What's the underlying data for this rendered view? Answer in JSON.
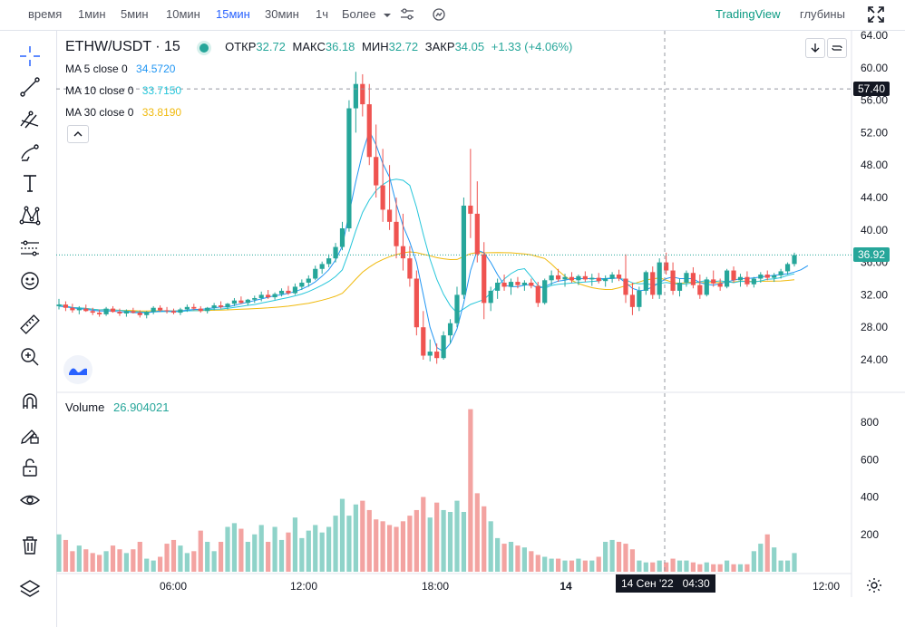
{
  "topbar": {
    "items": [
      {
        "label": "время",
        "active": false
      },
      {
        "label": "1мин",
        "active": false
      },
      {
        "label": "5мин",
        "active": false
      },
      {
        "label": "10мин",
        "active": false
      },
      {
        "label": "15мин",
        "active": true
      },
      {
        "label": "30мин",
        "active": false
      },
      {
        "label": "1ч",
        "active": false
      },
      {
        "label": "Более",
        "active": false
      }
    ],
    "brand": "TradingView",
    "depth": "глубины"
  },
  "legend": {
    "symbol": "ETHW/USDT · 15",
    "open_label": "ОТКР",
    "open": "32.72",
    "high_label": "МАКС",
    "high": "36.18",
    "low_label": "МИН",
    "low": "32.72",
    "close_label": "ЗАКР",
    "close": "34.05",
    "change": "+1.33 (+4.06%)",
    "ma5": {
      "label": "MA 5 close 0",
      "value": "34.5720",
      "color": "#2196f3"
    },
    "ma10": {
      "label": "MA 10 close 0",
      "value": "33.7150",
      "color": "#26c6da"
    },
    "ma30": {
      "label": "MA 30 close 0",
      "value": "33.8190",
      "color": "#f0b90b"
    }
  },
  "volume": {
    "label": "Volume",
    "value": "26.904021"
  },
  "price_axis": {
    "ticks": [
      "64.00",
      "60.00",
      "56.00",
      "52.00",
      "48.00",
      "44.00",
      "40.00",
      "36.00",
      "32.00",
      "28.00",
      "24.00"
    ],
    "crosshair_price": "57.40",
    "last_price": "36.92"
  },
  "volume_axis": {
    "ticks": [
      "800",
      "600",
      "400",
      "200"
    ]
  },
  "time_axis": {
    "ticks": [
      "06:00",
      "12:00",
      "18:00",
      "14",
      "12:00"
    ],
    "crosshair_time": "14 Сен '22   04:30"
  },
  "colors": {
    "up": "#26a69a",
    "down": "#ef5350",
    "up_light": "#8fd3c9",
    "down_light": "#f3a3a1"
  },
  "chart_data": {
    "type": "candlestick",
    "y_unit": "USDT",
    "ohlc": [
      [
        30.6,
        31.5,
        30.2,
        30.8
      ],
      [
        30.8,
        31.2,
        30.0,
        30.4
      ],
      [
        30.4,
        30.9,
        29.8,
        30.1
      ],
      [
        30.1,
        30.6,
        29.6,
        30.3
      ],
      [
        30.3,
        30.8,
        29.9,
        30.0
      ],
      [
        30.0,
        30.4,
        29.5,
        29.8
      ],
      [
        29.8,
        30.2,
        29.3,
        29.6
      ],
      [
        29.6,
        30.5,
        29.4,
        30.3
      ],
      [
        30.3,
        30.6,
        29.8,
        29.9
      ],
      [
        29.9,
        30.3,
        29.4,
        29.7
      ],
      [
        29.7,
        30.2,
        29.3,
        30.0
      ],
      [
        30.0,
        30.4,
        29.7,
        29.8
      ],
      [
        29.8,
        30.1,
        29.2,
        29.5
      ],
      [
        29.5,
        30.0,
        29.1,
        29.9
      ],
      [
        29.9,
        30.6,
        29.6,
        30.4
      ],
      [
        30.4,
        30.7,
        29.9,
        30.1
      ],
      [
        30.1,
        30.5,
        29.7,
        30.0
      ],
      [
        30.0,
        30.3,
        29.6,
        29.8
      ],
      [
        29.8,
        30.4,
        29.5,
        30.2
      ],
      [
        30.2,
        30.8,
        29.9,
        30.5
      ],
      [
        30.5,
        30.9,
        30.1,
        30.3
      ],
      [
        30.3,
        30.6,
        29.8,
        30.0
      ],
      [
        30.0,
        30.5,
        29.7,
        30.4
      ],
      [
        30.4,
        31.0,
        30.1,
        30.7
      ],
      [
        30.7,
        31.2,
        30.3,
        30.5
      ],
      [
        30.5,
        31.0,
        30.2,
        30.9
      ],
      [
        30.9,
        31.6,
        30.6,
        31.3
      ],
      [
        31.3,
        31.8,
        30.9,
        31.0
      ],
      [
        31.0,
        31.5,
        30.7,
        31.4
      ],
      [
        31.4,
        31.9,
        31.0,
        31.6
      ],
      [
        31.6,
        32.4,
        31.2,
        32.0
      ],
      [
        32.0,
        32.6,
        31.5,
        31.7
      ],
      [
        31.7,
        32.3,
        31.4,
        32.1
      ],
      [
        32.1,
        32.8,
        31.8,
        32.5
      ],
      [
        32.5,
        33.1,
        32.0,
        32.2
      ],
      [
        32.2,
        33.4,
        32.0,
        33.0
      ],
      [
        33.0,
        33.9,
        32.6,
        33.5
      ],
      [
        33.5,
        34.4,
        33.0,
        34.0
      ],
      [
        34.0,
        35.6,
        33.8,
        35.2
      ],
      [
        35.2,
        36.1,
        34.6,
        35.8
      ],
      [
        35.8,
        37.0,
        35.4,
        36.5
      ],
      [
        36.5,
        38.4,
        36.0,
        37.9
      ],
      [
        37.9,
        41.0,
        37.5,
        40.2
      ],
      [
        40.2,
        56.0,
        39.8,
        55.0
      ],
      [
        55.0,
        59.5,
        52.0,
        58.0
      ],
      [
        58.0,
        59.2,
        54.0,
        55.5
      ],
      [
        55.5,
        58.0,
        48.0,
        49.0
      ],
      [
        49.0,
        53.0,
        44.0,
        45.5
      ],
      [
        45.5,
        50.0,
        41.0,
        42.5
      ],
      [
        42.5,
        48.0,
        40.0,
        41.0
      ],
      [
        41.0,
        44.0,
        36.5,
        38.0
      ],
      [
        38.0,
        42.0,
        35.0,
        36.5
      ],
      [
        36.5,
        38.0,
        33.0,
        34.0
      ],
      [
        34.0,
        35.0,
        27.0,
        28.0
      ],
      [
        28.0,
        30.0,
        24.0,
        24.5
      ],
      [
        24.5,
        26.5,
        23.8,
        25.0
      ],
      [
        25.0,
        26.0,
        23.5,
        24.2
      ],
      [
        24.2,
        27.5,
        24.0,
        27.0
      ],
      [
        27.0,
        29.0,
        26.0,
        28.5
      ],
      [
        28.5,
        33.0,
        28.0,
        32.0
      ],
      [
        32.0,
        44.0,
        31.5,
        43.0
      ],
      [
        43.0,
        50.0,
        39.0,
        42.0
      ],
      [
        42.0,
        46.0,
        36.0,
        37.0
      ],
      [
        37.0,
        38.5,
        29.0,
        31.0
      ],
      [
        31.0,
        33.0,
        30.0,
        32.5
      ],
      [
        32.5,
        34.0,
        31.5,
        33.5
      ],
      [
        33.5,
        34.5,
        32.5,
        33.0
      ],
      [
        33.0,
        34.0,
        32.0,
        33.6
      ],
      [
        33.6,
        34.2,
        32.8,
        33.2
      ],
      [
        33.2,
        33.8,
        32.5,
        33.5
      ],
      [
        33.5,
        34.0,
        32.8,
        33.1
      ],
      [
        33.1,
        33.6,
        30.5,
        31.0
      ],
      [
        31.0,
        34.0,
        30.8,
        33.8
      ],
      [
        33.8,
        35.0,
        33.2,
        34.4
      ],
      [
        34.4,
        35.2,
        33.6,
        33.9
      ],
      [
        33.9,
        34.6,
        33.0,
        34.2
      ],
      [
        34.2,
        34.8,
        33.5,
        33.8
      ],
      [
        33.8,
        34.5,
        33.2,
        34.3
      ],
      [
        34.3,
        34.9,
        33.6,
        33.9
      ],
      [
        33.9,
        34.6,
        33.1,
        34.1
      ],
      [
        34.1,
        34.7,
        33.4,
        33.7
      ],
      [
        33.7,
        34.4,
        33.0,
        34.0
      ],
      [
        34.0,
        34.8,
        33.5,
        34.5
      ],
      [
        34.5,
        35.1,
        33.7,
        34.0
      ],
      [
        34.0,
        37.0,
        31.0,
        32.0
      ],
      [
        32.0,
        33.5,
        29.5,
        30.5
      ],
      [
        30.5,
        33.0,
        30.0,
        32.5
      ],
      [
        32.5,
        35.0,
        32.0,
        34.8
      ],
      [
        34.8,
        35.5,
        31.5,
        32.0
      ],
      [
        32.0,
        36.5,
        31.5,
        36.0
      ],
      [
        36.0,
        37.2,
        34.5,
        35.0
      ],
      [
        35.0,
        36.0,
        32.0,
        32.5
      ],
      [
        32.5,
        34.0,
        31.8,
        33.5
      ],
      [
        33.5,
        35.0,
        33.0,
        34.7
      ],
      [
        34.7,
        35.4,
        32.8,
        33.2
      ],
      [
        33.2,
        34.5,
        31.5,
        32.0
      ],
      [
        32.0,
        34.2,
        31.8,
        33.9
      ],
      [
        33.9,
        35.0,
        33.0,
        33.4
      ],
      [
        33.4,
        34.0,
        32.5,
        33.0
      ],
      [
        33.0,
        35.2,
        32.8,
        35.0
      ],
      [
        35.0,
        35.5,
        33.5,
        33.8
      ],
      [
        33.8,
        34.6,
        33.0,
        34.2
      ],
      [
        34.2,
        34.9,
        33.0,
        33.3
      ],
      [
        33.3,
        34.2,
        32.9,
        34.0
      ],
      [
        34.0,
        34.8,
        33.5,
        34.5
      ],
      [
        34.5,
        35.0,
        33.8,
        34.1
      ],
      [
        34.1,
        34.7,
        33.6,
        34.4
      ],
      [
        34.4,
        35.2,
        34.0,
        34.9
      ],
      [
        34.9,
        36.0,
        34.5,
        35.8
      ],
      [
        35.8,
        37.2,
        35.5,
        36.9
      ]
    ],
    "volume": [
      200,
      170,
      110,
      140,
      120,
      100,
      90,
      110,
      140,
      120,
      100,
      120,
      160,
      70,
      60,
      80,
      150,
      170,
      140,
      100,
      110,
      220,
      160,
      110,
      160,
      240,
      260,
      230,
      160,
      200,
      250,
      160,
      240,
      170,
      210,
      290,
      180,
      220,
      250,
      210,
      240,
      300,
      390,
      300,
      360,
      380,
      330,
      280,
      270,
      250,
      240,
      270,
      300,
      330,
      400,
      290,
      370,
      330,
      320,
      380,
      320,
      870,
      420,
      350,
      270,
      180,
      150,
      160,
      140,
      130,
      110,
      90,
      80,
      70,
      70,
      60,
      60,
      70,
      60,
      60,
      80,
      160,
      170,
      160,
      150,
      120,
      60,
      50,
      50,
      60,
      50,
      70,
      60,
      60,
      50,
      40,
      50,
      40,
      40,
      60,
      40,
      40,
      40,
      110,
      150,
      200,
      130,
      60,
      60,
      100,
      50,
      70,
      40,
      40,
      60,
      60,
      60,
      80,
      150,
      200
    ],
    "ma5": [
      30.6,
      30.5,
      30.4,
      30.3,
      30.2,
      30.1,
      30.0,
      30.0,
      30.0,
      29.9,
      29.9,
      29.8,
      29.8,
      29.8,
      29.9,
      30.0,
      30.0,
      30.0,
      30.0,
      30.1,
      30.2,
      30.2,
      30.3,
      30.4,
      30.5,
      30.5,
      30.7,
      30.9,
      31.1,
      31.3,
      31.5,
      31.7,
      31.9,
      32.0,
      32.2,
      32.4,
      32.7,
      33.1,
      33.6,
      34.3,
      35.1,
      36.3,
      38.0,
      42.0,
      46.0,
      49.5,
      52.2,
      50.5,
      48.2,
      46.5,
      43.2,
      40.5,
      38.5,
      36.0,
      32.0,
      28.0,
      25.5,
      25.0,
      26.0,
      27.8,
      31.0,
      35.0,
      37.5,
      37.2,
      36.0,
      34.5,
      33.2,
      33.0,
      33.0,
      33.2,
      33.3,
      32.8,
      33.0,
      33.4,
      33.7,
      33.8,
      34.0,
      34.0,
      34.0,
      34.0,
      34.0,
      34.0,
      34.0,
      34.1,
      33.5,
      32.8,
      32.5,
      32.6,
      33.0,
      33.5,
      34.0,
      34.2,
      34.0,
      34.0,
      34.0,
      33.5,
      33.3,
      33.2,
      33.4,
      33.6,
      33.8,
      34.0,
      34.0,
      34.1,
      34.2,
      34.3,
      34.4,
      34.5,
      34.6,
      34.8,
      35.1,
      35.6
    ]
  }
}
